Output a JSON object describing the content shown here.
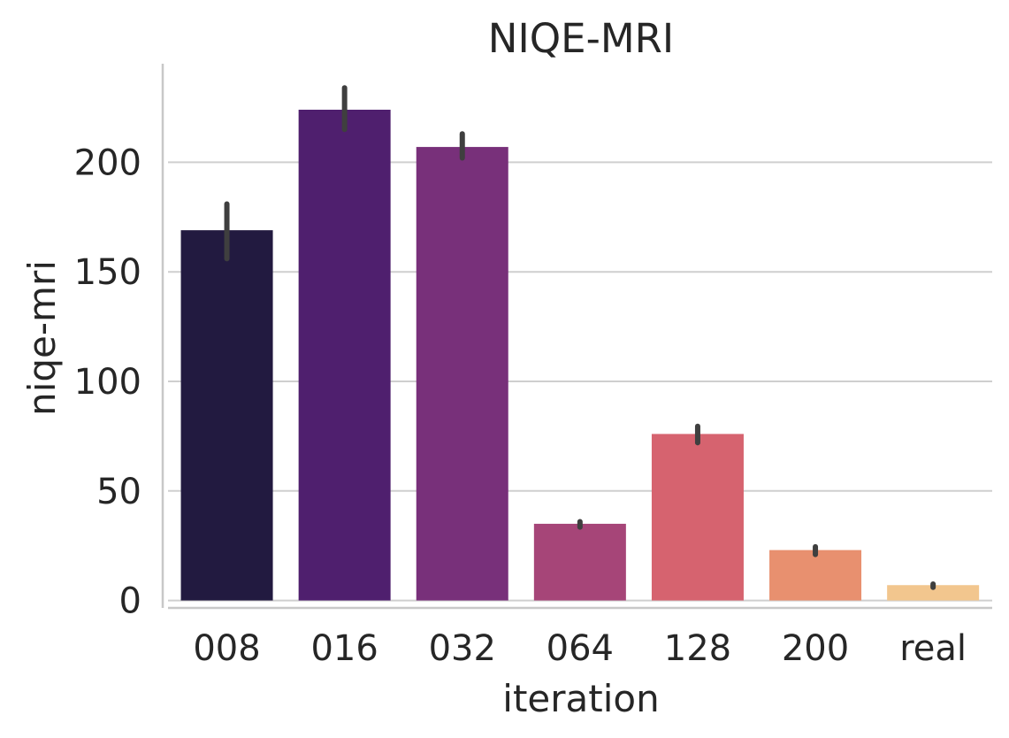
{
  "chart_data": {
    "type": "bar",
    "title": "NIQE-MRI",
    "xlabel": "iteration",
    "ylabel": "niqe-mri",
    "categories": [
      "008",
      "016",
      "032",
      "064",
      "128",
      "200",
      "real"
    ],
    "values": [
      169,
      224,
      207,
      35,
      76,
      23,
      7
    ],
    "error_bars": [
      [
        156,
        181
      ],
      [
        215,
        234
      ],
      [
        202,
        213
      ],
      [
        33.5,
        36
      ],
      [
        72,
        79.5
      ],
      [
        21,
        24.5
      ],
      [
        6,
        7.5
      ]
    ],
    "colors": [
      "#221A40",
      "#4F1F6E",
      "#78307A",
      "#A64578",
      "#D6636F",
      "#E8906F",
      "#F2C68E"
    ],
    "ylim": [
      -3,
      245
    ],
    "yticks": [
      0,
      50,
      100,
      150,
      200
    ],
    "grid": true,
    "legend": "none"
  }
}
